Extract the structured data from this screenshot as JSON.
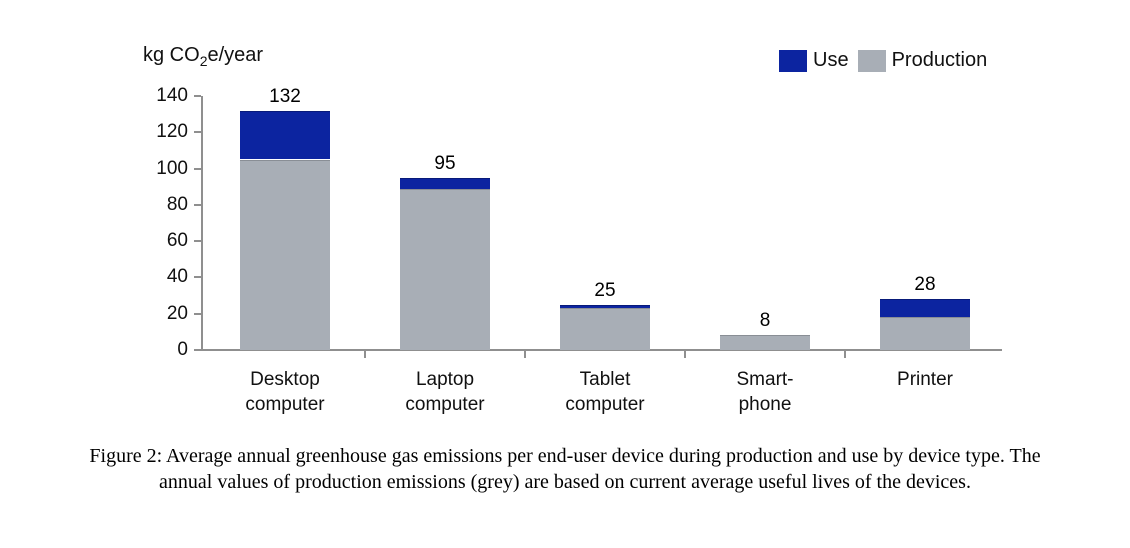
{
  "chart_data": {
    "type": "bar",
    "stacked": true,
    "ylabel": {
      "prefix": "kg CO",
      "sub": "2",
      "suffix": "e/year"
    },
    "ylim": [
      0,
      140
    ],
    "yticks": [
      0,
      20,
      40,
      60,
      80,
      100,
      120,
      140
    ],
    "grid": false,
    "legend_position": "top-right",
    "legend": [
      {
        "label": "Use",
        "color": "#0c24a0"
      },
      {
        "label": "Production",
        "color": "#a8aeb6"
      }
    ],
    "categories": [
      {
        "lines": [
          "Desktop",
          "computer"
        ]
      },
      {
        "lines": [
          "Laptop",
          "computer"
        ]
      },
      {
        "lines": [
          "Tablet",
          "computer"
        ]
      },
      {
        "lines": [
          "Smart-",
          "phone"
        ]
      },
      {
        "lines": [
          "Printer"
        ]
      }
    ],
    "total_labels": [
      "132",
      "95",
      "25",
      "8",
      "28"
    ],
    "totals": [
      132,
      95,
      25,
      8,
      28
    ],
    "series": [
      {
        "name": "Production",
        "color": "#a8aeb6",
        "values": [
          105,
          89,
          23,
          8,
          18
        ]
      },
      {
        "name": "Use",
        "color": "#0c24a0",
        "values": [
          27,
          6,
          2,
          0,
          10
        ]
      }
    ],
    "axis_color": "#8f8f8f"
  },
  "caption": {
    "line1": "Figure 2: Average annual greenhouse gas emissions per end-user device during production and use by device type.  The",
    "line2": "annual values of production emissions (grey) are based on current average useful lives of the devices."
  }
}
